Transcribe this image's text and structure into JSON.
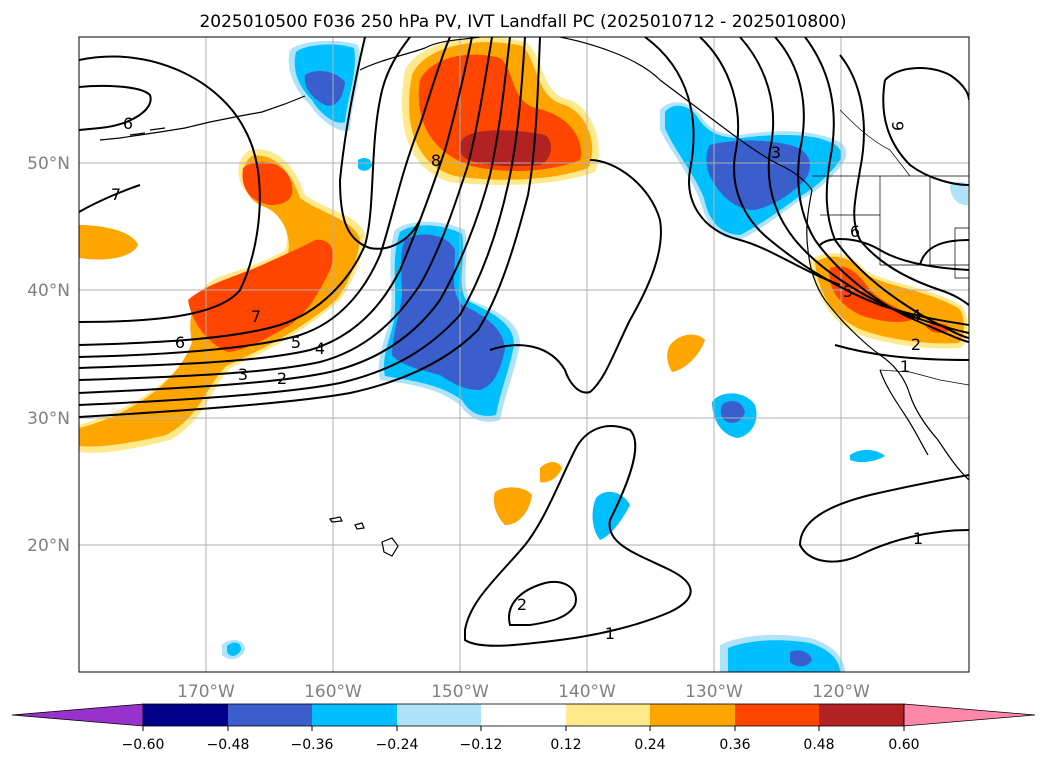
{
  "title": "2025010500 F036 250 hPa PV, IVT Landfall PC (2025010712 - 2025010800)",
  "map": {
    "lat_labels": [
      "50°N",
      "40°N",
      "30°N",
      "20°N"
    ],
    "lon_labels": [
      "170°W",
      "160°W",
      "150°W",
      "140°W",
      "130°W",
      "120°W"
    ],
    "contour_labels": [
      "6",
      "7",
      "8",
      "7",
      "6",
      "5",
      "4",
      "3",
      "2",
      "3",
      "6",
      "9",
      "5",
      "4",
      "2",
      "1",
      "1",
      "2",
      "1"
    ]
  },
  "colorbar": {
    "ticks": [
      "−0.60",
      "−0.48",
      "−0.36",
      "−0.24",
      "−0.12",
      "0.12",
      "0.24",
      "0.36",
      "0.48",
      "0.60"
    ],
    "colors": [
      "#9932cc",
      "#00008b",
      "#3a5fcd",
      "#00bfff",
      "#aee3fa",
      "#ffffff",
      "#ffe98a",
      "#ffa500",
      "#ff4500",
      "#b22222",
      "#ff88aa"
    ]
  },
  "fill_colors": {
    "yellow": "#ffe98a",
    "orange": "#ffa500",
    "red_orange": "#ff4500",
    "dark_red": "#b22222",
    "light_blue": "#aee3fa",
    "blue": "#00bfff",
    "royal_blue": "#3a5fcd"
  }
}
